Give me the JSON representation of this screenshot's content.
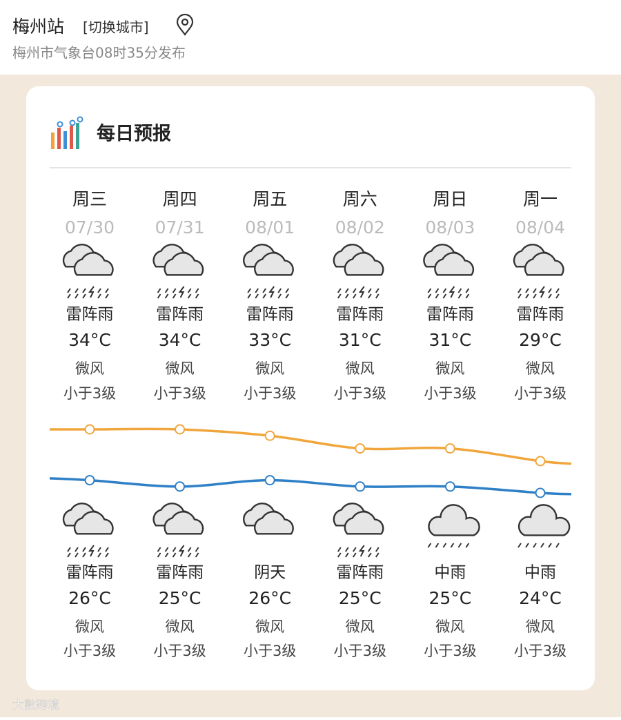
{
  "header": {
    "station": "梅州站",
    "switch": "[切换城市]",
    "publisher": "梅州市气象台08时35分发布"
  },
  "card": {
    "title": "每日预报"
  },
  "days": [
    {
      "weekday": "周三",
      "date": "07/30",
      "day_weather": "雷阵雨",
      "high": {
        "value": 34,
        "label": "34°C"
      },
      "day_wind": "微风",
      "day_level": "小于3级",
      "night_weather": "雷阵雨",
      "low": {
        "value": 26,
        "label": "26°C"
      },
      "night_wind": "微风",
      "night_level": "小于3级"
    },
    {
      "weekday": "周四",
      "date": "07/31",
      "day_weather": "雷阵雨",
      "high": {
        "value": 34,
        "label": "34°C"
      },
      "day_wind": "微风",
      "day_level": "小于3级",
      "night_weather": "雷阵雨",
      "low": {
        "value": 25,
        "label": "25°C"
      },
      "night_wind": "微风",
      "night_level": "小于3级"
    },
    {
      "weekday": "周五",
      "date": "08/01",
      "day_weather": "雷阵雨",
      "high": {
        "value": 33,
        "label": "33°C"
      },
      "day_wind": "微风",
      "day_level": "小于3级",
      "night_weather": "阴天",
      "low": {
        "value": 26,
        "label": "26°C"
      },
      "night_wind": "微风",
      "night_level": "小于3级"
    },
    {
      "weekday": "周六",
      "date": "08/02",
      "day_weather": "雷阵雨",
      "high": {
        "value": 31,
        "label": "31°C"
      },
      "day_wind": "微风",
      "day_level": "小于3级",
      "night_weather": "雷阵雨",
      "low": {
        "value": 25,
        "label": "25°C"
      },
      "night_wind": "微风",
      "night_level": "小于3级"
    },
    {
      "weekday": "周日",
      "date": "08/03",
      "day_weather": "雷阵雨",
      "high": {
        "value": 31,
        "label": "31°C"
      },
      "day_wind": "微风",
      "day_level": "小于3级",
      "night_weather": "中雨",
      "low": {
        "value": 25,
        "label": "25°C"
      },
      "night_wind": "微风",
      "night_level": "小于3级"
    },
    {
      "weekday": "周一",
      "date": "08/04",
      "day_weather": "雷阵雨",
      "high": {
        "value": 29,
        "label": "29°C"
      },
      "day_wind": "微风",
      "day_level": "小于3级",
      "night_weather": "中雨",
      "low": {
        "value": 24,
        "label": "24°C"
      },
      "night_wind": "微风",
      "night_level": "小于3级"
    }
  ],
  "watermark": "大數跨境"
}
